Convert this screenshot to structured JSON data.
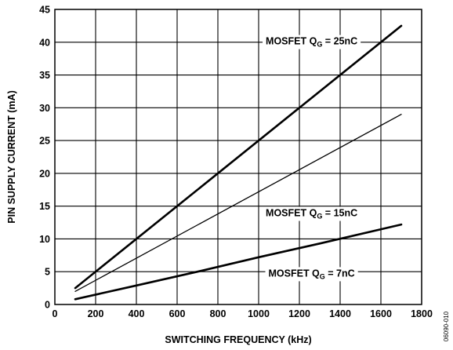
{
  "chart_data": {
    "type": "line",
    "xlabel": "SWITCHING FREQUENCY (kHz)",
    "ylabel": "PIN SUPPLY CURRENT (mA)",
    "xlim": [
      0,
      1800
    ],
    "ylim": [
      0,
      45
    ],
    "xticks": [
      0,
      200,
      400,
      600,
      800,
      1000,
      1200,
      1400,
      1600,
      1800
    ],
    "yticks": [
      0,
      5,
      10,
      15,
      20,
      25,
      30,
      35,
      40,
      45
    ],
    "grid": true,
    "series": [
      {
        "name_prefix": "MOSFET Q",
        "name_sub": "G",
        "name_suffix": " = 25nC",
        "x": [
          100,
          1700
        ],
        "y": [
          2.5,
          42.5
        ],
        "weight": "thick"
      },
      {
        "name_prefix": "MOSFET Q",
        "name_sub": "G",
        "name_suffix": " = 15nC",
        "x": [
          100,
          1700
        ],
        "y": [
          2.0,
          29.0
        ],
        "weight": "thin"
      },
      {
        "name_prefix": "MOSFET Q",
        "name_sub": "G",
        "name_suffix": " = 7nC",
        "x": [
          100,
          400,
          700,
          1000,
          1300,
          1700
        ],
        "y": [
          0.8,
          2.9,
          5.0,
          7.2,
          9.3,
          12.2
        ],
        "weight": "thick"
      }
    ],
    "annotations": [
      {
        "series": 0,
        "at_x": 1260,
        "at_y": 40.2
      },
      {
        "series": 1,
        "at_x": 1260,
        "at_y": 14.0
      },
      {
        "series": 2,
        "at_x": 1260,
        "at_y": 4.8
      }
    ]
  },
  "figure_code": "06090-010"
}
